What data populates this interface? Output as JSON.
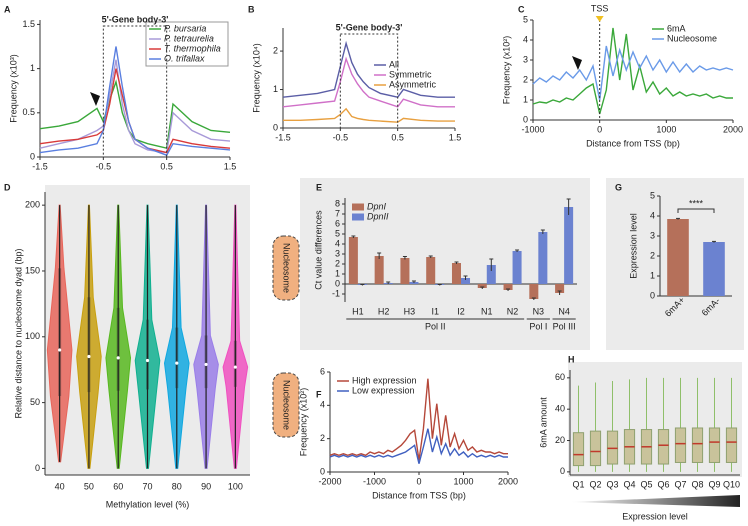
{
  "chart_data": [
    {
      "type": "line",
      "label": "A",
      "annotation": "5'-Gene body-3'",
      "ylabel": "Frequency (x10³)",
      "x": [
        -1.5,
        -1.2,
        -0.9,
        -0.6,
        -0.5,
        -0.4,
        -0.3,
        -0.2,
        -0.1,
        0,
        0.2,
        0.5,
        0.6,
        0.9,
        1.2,
        1.5
      ],
      "xlim": [
        -1.5,
        1.5
      ],
      "xticks": [
        -1.5,
        -0.5,
        0.5,
        1.5
      ],
      "ylim": [
        0,
        1.55
      ],
      "yticks": [
        0,
        0.5,
        1,
        1.5
      ],
      "legend": "upper right",
      "legend_style": "italic",
      "series": [
        {
          "name": "P. bursaria",
          "color": "#3aa83a",
          "values": [
            0.32,
            0.35,
            0.4,
            0.55,
            0.4,
            0.65,
            0.85,
            0.5,
            0.3,
            0.2,
            0.15,
            0.1,
            0.6,
            0.4,
            0.3,
            0.28
          ]
        },
        {
          "name": "P. tetraurelia",
          "color": "#a89ad8",
          "values": [
            0.1,
            0.15,
            0.2,
            0.3,
            0.35,
            0.7,
            1.1,
            0.6,
            0.3,
            0.15,
            0.08,
            0.05,
            0.5,
            0.3,
            0.2,
            0.18
          ]
        },
        {
          "name": "T. thermophila",
          "color": "#d83a3a",
          "values": [
            0.15,
            0.18,
            0.2,
            0.25,
            0.3,
            0.6,
            1.0,
            0.7,
            0.4,
            0.2,
            0.1,
            0.05,
            0.2,
            0.15,
            0.12,
            0.1
          ]
        },
        {
          "name": "O. trifallax",
          "color": "#5a7fe0",
          "values": [
            0.05,
            0.08,
            0.1,
            0.15,
            0.3,
            0.8,
            1.25,
            0.8,
            0.4,
            0.2,
            0.1,
            0.02,
            0.15,
            0.12,
            0.1,
            0.08
          ]
        }
      ]
    },
    {
      "type": "line",
      "label": "B",
      "annotation": "5'-Gene body-3'",
      "ylabel": "Frequency (x10⁴)",
      "x": [
        -1.5,
        -1.2,
        -0.9,
        -0.6,
        -0.5,
        -0.4,
        -0.3,
        -0.2,
        -0.1,
        0,
        0.2,
        0.5,
        0.6,
        0.9,
        1.2,
        1.5
      ],
      "xlim": [
        -1.5,
        1.5
      ],
      "xticks": [
        -1.5,
        -0.5,
        0.5,
        1.5
      ],
      "ylim": [
        0,
        2.6
      ],
      "yticks": [
        0,
        1,
        2
      ],
      "legend": "center right",
      "series": [
        {
          "name": "All",
          "color": "#5b5ea6",
          "values": [
            0.8,
            0.85,
            0.9,
            1.0,
            1.6,
            2.2,
            1.7,
            1.4,
            1.2,
            1.05,
            0.9,
            0.8,
            1.0,
            0.85,
            0.8,
            0.8
          ]
        },
        {
          "name": "Symmetric",
          "color": "#d070c8",
          "values": [
            0.55,
            0.6,
            0.65,
            0.7,
            1.2,
            1.8,
            1.4,
            1.15,
            0.95,
            0.8,
            0.7,
            0.55,
            0.75,
            0.6,
            0.55,
            0.55
          ]
        },
        {
          "name": "Asymmetric",
          "color": "#e8a040",
          "values": [
            0.2,
            0.2,
            0.22,
            0.25,
            0.35,
            0.5,
            0.3,
            0.25,
            0.22,
            0.2,
            0.18,
            0.15,
            0.25,
            0.2,
            0.18,
            0.18
          ]
        }
      ]
    },
    {
      "type": "line",
      "label": "C",
      "tss_label": "TSS",
      "ylabel": "Frequency (x10²)",
      "xlabel": "Distance from TSS (bp)",
      "x": [
        -1000,
        -900,
        -800,
        -700,
        -600,
        -500,
        -400,
        -300,
        -200,
        -100,
        0,
        100,
        200,
        300,
        400,
        500,
        600,
        700,
        800,
        900,
        1000,
        1100,
        1200,
        1300,
        1400,
        1500,
        1600,
        1700,
        1800,
        1900,
        2000
      ],
      "xlim": [
        -1000,
        2000
      ],
      "xticks": [
        -1000,
        0,
        1000,
        2000
      ],
      "ylim": [
        0,
        5
      ],
      "yticks": [
        0,
        1,
        2,
        3,
        4,
        5
      ],
      "legend": "upper right",
      "series": [
        {
          "name": "6mA",
          "color": "#3aa83a",
          "values": [
            0.8,
            0.9,
            0.85,
            1.0,
            0.9,
            1.1,
            1.0,
            1.3,
            1.6,
            1.8,
            0.3,
            1.5,
            4.6,
            2.0,
            4.3,
            1.5,
            2.7,
            1.4,
            1.9,
            1.3,
            1.6,
            1.2,
            1.4,
            1.2,
            1.3,
            1.2,
            1.3,
            1.1,
            1.2,
            1.1,
            1.1
          ]
        },
        {
          "name": "Nucleosome",
          "color": "#6a9ae8",
          "values": [
            1.8,
            2.1,
            1.9,
            2.2,
            2.0,
            2.4,
            2.1,
            2.5,
            2.0,
            2.7,
            1.0,
            3.7,
            2.2,
            3.5,
            2.5,
            3.4,
            2.6,
            3.2,
            2.5,
            3.0,
            2.4,
            2.9,
            2.4,
            2.8,
            2.4,
            2.7,
            2.5,
            2.6,
            2.5,
            2.6,
            2.5
          ]
        }
      ]
    },
    {
      "type": "violin",
      "label": "D",
      "ylabel": "Relative distance to nucleosome dyad (bp)",
      "xlabel": "Methylation level (%)",
      "categories": [
        "40",
        "50",
        "60",
        "70",
        "80",
        "90",
        "100"
      ],
      "colors": [
        "#e8655a",
        "#c8a010",
        "#58b820",
        "#10b090",
        "#10a8e0",
        "#9a7ee8",
        "#f050c0"
      ],
      "min": [
        5,
        0,
        0,
        0,
        0,
        0,
        0
      ],
      "q1": [
        55,
        58,
        59,
        60,
        61,
        61,
        62
      ],
      "median": [
        90,
        85,
        84,
        82,
        80,
        79,
        77
      ],
      "q3": [
        152,
        130,
        122,
        113,
        107,
        101,
        97
      ],
      "max": [
        200,
        200,
        200,
        200,
        200,
        200,
        200
      ],
      "ylim": [
        -5,
        210
      ],
      "yticks": [
        0,
        50,
        100,
        150,
        200
      ],
      "annotations": [
        "Nucleosome",
        "Nucleosome"
      ]
    },
    {
      "type": "bar",
      "label": "E",
      "ylabel": "Ct value differences",
      "categories": [
        "H1",
        "H2",
        "H3",
        "I1",
        "I2",
        "N1",
        "N2",
        "N3",
        "N4"
      ],
      "groups": [
        {
          "label": "Pol II",
          "categories": [
            "H1",
            "H2",
            "H3",
            "I1",
            "I2",
            "N1",
            "N2"
          ]
        },
        {
          "label": "Pol I",
          "categories": [
            "N3"
          ]
        },
        {
          "label": "Pol III",
          "categories": [
            "N4"
          ]
        }
      ],
      "ylim": [
        -1.8,
        8.6
      ],
      "yticks": [
        -1,
        0,
        1,
        2,
        3,
        4,
        5,
        6,
        7,
        8
      ],
      "legend": "upper left",
      "legend_style": "italic",
      "series": [
        {
          "name": "DpnI",
          "color": "#b5705a",
          "values": [
            4.7,
            2.8,
            2.6,
            2.7,
            2.1,
            -0.4,
            -0.6,
            -1.5,
            -0.9
          ],
          "errors": [
            0.1,
            0.3,
            0.15,
            0.1,
            0.1,
            0.1,
            0.1,
            0.1,
            0.2
          ]
        },
        {
          "name": "DpnII",
          "color": "#6b82d0",
          "values": [
            -0.1,
            0.1,
            0.2,
            -0.1,
            0.6,
            1.9,
            3.3,
            5.2,
            7.7
          ],
          "errors": [
            0.05,
            0.1,
            0.1,
            0.05,
            0.2,
            0.6,
            0.1,
            0.2,
            0.8
          ]
        }
      ]
    },
    {
      "type": "line",
      "label": "F",
      "ylabel": "Frequency (x10²)",
      "xlabel": "Distance from TSS (bp)",
      "x": [
        -2000,
        -1900,
        -1800,
        -1700,
        -1600,
        -1500,
        -1400,
        -1300,
        -1200,
        -1100,
        -1000,
        -900,
        -800,
        -700,
        -600,
        -500,
        -400,
        -300,
        -200,
        -100,
        0,
        100,
        200,
        300,
        400,
        500,
        600,
        700,
        800,
        900,
        1000,
        1100,
        1200,
        1300,
        1400,
        1500,
        1600,
        1700,
        1800,
        1900,
        2000
      ],
      "xlim": [
        -2000,
        2000
      ],
      "xticks": [
        -2000,
        -1000,
        0,
        1000,
        2000
      ],
      "ylim": [
        0,
        6
      ],
      "yticks": [
        0,
        2,
        4,
        6
      ],
      "legend": "upper left",
      "series": [
        {
          "name": "High expression",
          "color": "#b5483a",
          "values": [
            1.0,
            1.1,
            1.0,
            1.1,
            1.0,
            1.1,
            1.0,
            1.1,
            1.0,
            1.2,
            1.1,
            1.2,
            1.1,
            1.3,
            1.2,
            1.4,
            1.6,
            1.9,
            2.3,
            2.5,
            0.7,
            2.6,
            5.6,
            2.0,
            4.1,
            1.6,
            3.4,
            1.5,
            2.3,
            1.4,
            1.9,
            1.3,
            1.5,
            1.2,
            1.3,
            1.2,
            1.2,
            1.1,
            1.2,
            1.1,
            1.1
          ]
        },
        {
          "name": "Low expression",
          "color": "#4060c0",
          "values": [
            0.9,
            1.0,
            0.9,
            1.0,
            0.9,
            1.0,
            0.9,
            1.0,
            0.9,
            1.0,
            0.9,
            1.0,
            0.9,
            1.0,
            0.9,
            1.0,
            1.1,
            1.2,
            1.4,
            1.6,
            0.5,
            1.5,
            2.6,
            1.2,
            2.1,
            1.1,
            1.7,
            1.0,
            1.4,
            1.0,
            1.2,
            0.9,
            1.1,
            0.9,
            1.0,
            0.9,
            1.0,
            0.9,
            1.0,
            0.9,
            0.9
          ]
        }
      ]
    },
    {
      "type": "bar",
      "label": "G",
      "ylabel": "Expression level",
      "significance": "****",
      "categories": [
        "6mA+",
        "6mA-"
      ],
      "values": [
        3.85,
        2.7
      ],
      "errors": [
        0.03,
        0.03
      ],
      "colors": [
        "#b5705a",
        "#6b82d0"
      ],
      "ylim": [
        0,
        5
      ],
      "yticks": [
        0,
        1,
        2,
        3,
        4,
        5
      ]
    },
    {
      "type": "box",
      "label": "H",
      "ylabel": "6mA amount",
      "xlabel": "Expression level",
      "categories": [
        "Q1",
        "Q2",
        "Q3",
        "Q4",
        "Q5",
        "Q6",
        "Q7",
        "Q8",
        "Q9",
        "Q10"
      ],
      "min": [
        0,
        0,
        0,
        0,
        0,
        0,
        0,
        0,
        0,
        0
      ],
      "q1": [
        4,
        4,
        5,
        5,
        5,
        5,
        6,
        6,
        6,
        6
      ],
      "median": [
        11,
        13,
        15,
        16,
        16,
        17,
        18,
        18,
        19,
        19
      ],
      "q3": [
        25,
        26,
        26,
        27,
        27,
        27,
        28,
        28,
        28,
        28
      ],
      "max": [
        55,
        57,
        58,
        59,
        60,
        60,
        60,
        60,
        60,
        60
      ],
      "color": "#c9c39b",
      "median_color": "#c0392b",
      "ylim": [
        -2,
        65
      ],
      "yticks": [
        0,
        20,
        40,
        60
      ]
    }
  ]
}
